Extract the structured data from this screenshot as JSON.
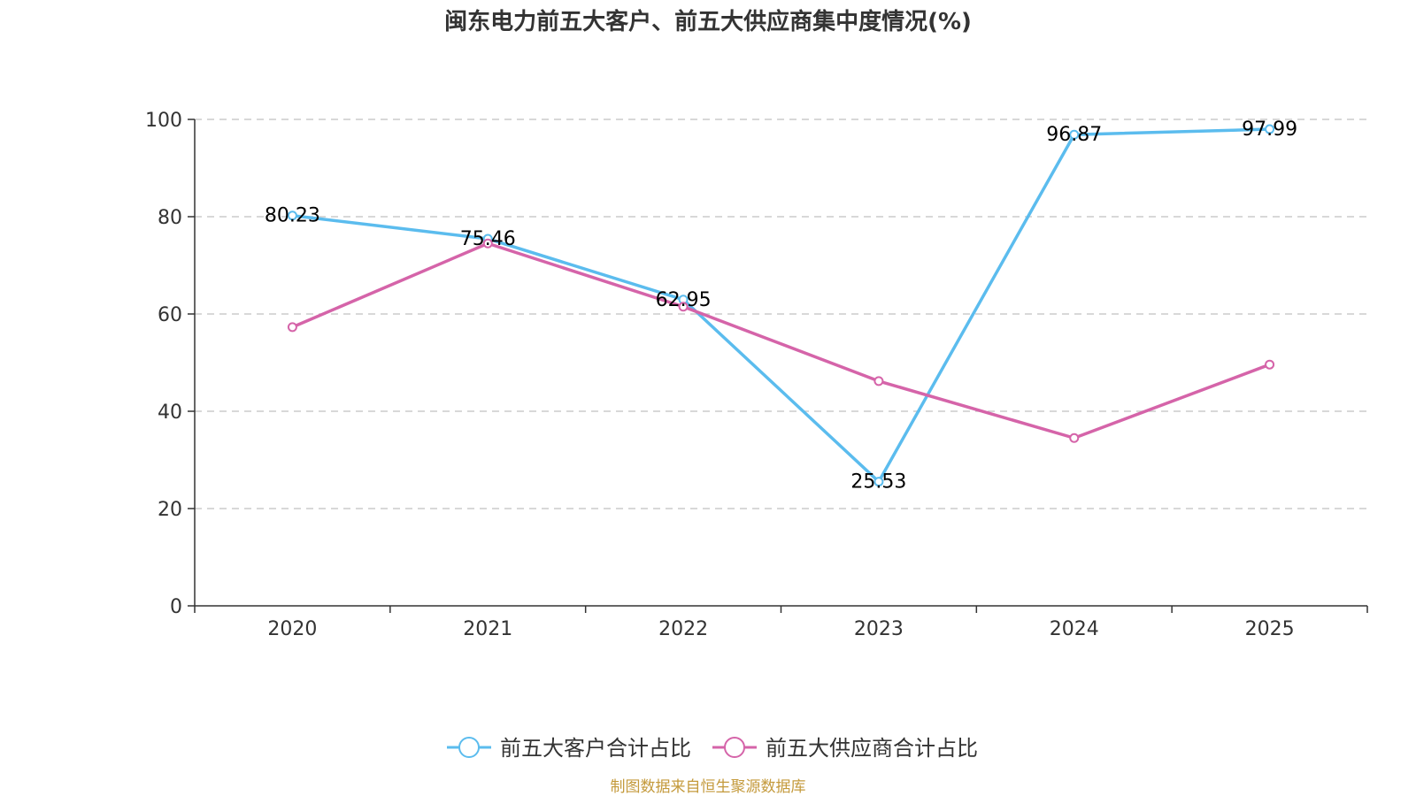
{
  "chart_data": {
    "type": "line",
    "title": "闽东电力前五大客户、前五大供应商集中度情况(%)",
    "categories": [
      "2020",
      "2021",
      "2022",
      "2023",
      "2024",
      "2025"
    ],
    "ylim": [
      0,
      100
    ],
    "yticks": [
      0,
      20,
      40,
      60,
      80,
      100
    ],
    "grid": true,
    "legend_position": "bottom-center",
    "series": [
      {
        "name": "前五大客户合计占比",
        "color": "#5bbcee",
        "values": [
          80.23,
          75.46,
          62.95,
          25.53,
          96.87,
          97.99
        ],
        "labels": [
          "80.23",
          "75.46",
          "62.95",
          "25.53",
          "96.87",
          "97.99"
        ]
      },
      {
        "name": "前五大供应商合计占比",
        "color": "#d564a9",
        "values": [
          57.3,
          74.5,
          61.5,
          46.2,
          34.5,
          49.6
        ]
      }
    ],
    "source": "制图数据来自恒生聚源数据库",
    "source_color": "#c49a3c"
  }
}
